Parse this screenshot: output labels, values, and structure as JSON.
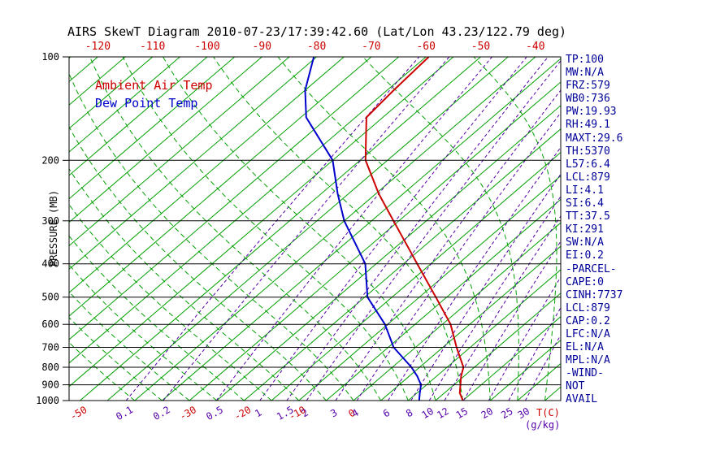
{
  "title": "AIRS SkewT Diagram 2010-07-23/17:39:42.60 (Lat/Lon 43.23/122.79 deg)",
  "pressure_axis_label": "PRESSURE (MB)",
  "side_panel": {
    "color": "#000099",
    "lines": [
      "TP:100",
      "MW:N/A",
      "FRZ:579",
      "WB0:736",
      "PW:19.93",
      "RH:49.1",
      "MAXT:29.6",
      "TH:5370",
      "L57:6.4",
      "LCL:879",
      "LI:4.1",
      "SI:6.4",
      "TT:37.5",
      "KI:291",
      "SW:N/A",
      "EI:0.2",
      "-PARCEL-",
      "CAPE:0",
      "CINH:7737",
      "LCL:879",
      "CAP:0.2",
      "LFC:N/A",
      "EL:N/A",
      "MPL:N/A",
      "-WIND-",
      "NOT",
      "AVAIL"
    ]
  },
  "chart_data": {
    "type": "skewt",
    "title": "AIRS SkewT Diagram 2010-07-23/17:39:42.60 (Lat/Lon 43.23/122.79 deg)",
    "pressure_ticks_mb": [
      100,
      200,
      300,
      400,
      500,
      600,
      700,
      800,
      900,
      1000
    ],
    "pressure_range_mb": [
      100,
      1000
    ],
    "top_temp_labels_c": [
      -120,
      -110,
      -100,
      -90,
      -80,
      -70,
      -60,
      -50,
      -40
    ],
    "bottom_temp_labels_c": [
      -50,
      -30,
      -20,
      -10,
      0
    ],
    "isotherms_c": {
      "min": -130,
      "max": 45,
      "step": 5
    },
    "moist_adiabats_start_c": {
      "min": -40,
      "max": 40,
      "step": 5
    },
    "mixing_ratio_lines_gkg": [
      0.1,
      0.2,
      0.5,
      1,
      1.5,
      2,
      3,
      4,
      6,
      8,
      10,
      12,
      15,
      20,
      25,
      30
    ],
    "axis_unit_labels": {
      "temperature": "T(C)",
      "mixing_ratio": "(g/kg)"
    },
    "colors": {
      "isotherm": "#00A000",
      "moist_adiabat": "#00A000",
      "mixing": "#5500AA",
      "isobar": "#000000",
      "frame": "#000000",
      "temp_labels": "#CC0000",
      "ambient": "#CC0000",
      "dewpoint": "#0000CC"
    },
    "series": [
      {
        "name": "Ambient Air Temp",
        "role": "ambient-temp",
        "color": "#CC0000",
        "points_p_t": [
          [
            1000,
            20
          ],
          [
            950,
            17.8
          ],
          [
            900,
            16.2
          ],
          [
            850,
            14.5
          ],
          [
            800,
            13
          ],
          [
            700,
            7.5
          ],
          [
            600,
            1.5
          ],
          [
            500,
            -7
          ],
          [
            400,
            -17.5
          ],
          [
            300,
            -31
          ],
          [
            250,
            -39.5
          ],
          [
            200,
            -49
          ],
          [
            150,
            -58
          ],
          [
            125,
            -58.8
          ],
          [
            100,
            -59.5
          ]
        ]
      },
      {
        "name": "Dew Point Temp",
        "role": "dew-point",
        "color": "#0000CC",
        "points_p_t": [
          [
            1000,
            12
          ],
          [
            950,
            10.5
          ],
          [
            900,
            9
          ],
          [
            850,
            6.5
          ],
          [
            800,
            3.5
          ],
          [
            700,
            -4
          ],
          [
            600,
            -10.5
          ],
          [
            500,
            -19.5
          ],
          [
            400,
            -27
          ],
          [
            300,
            -40
          ],
          [
            250,
            -47
          ],
          [
            200,
            -55
          ],
          [
            150,
            -69
          ],
          [
            125,
            -75
          ],
          [
            100,
            -80.5
          ]
        ]
      }
    ]
  }
}
